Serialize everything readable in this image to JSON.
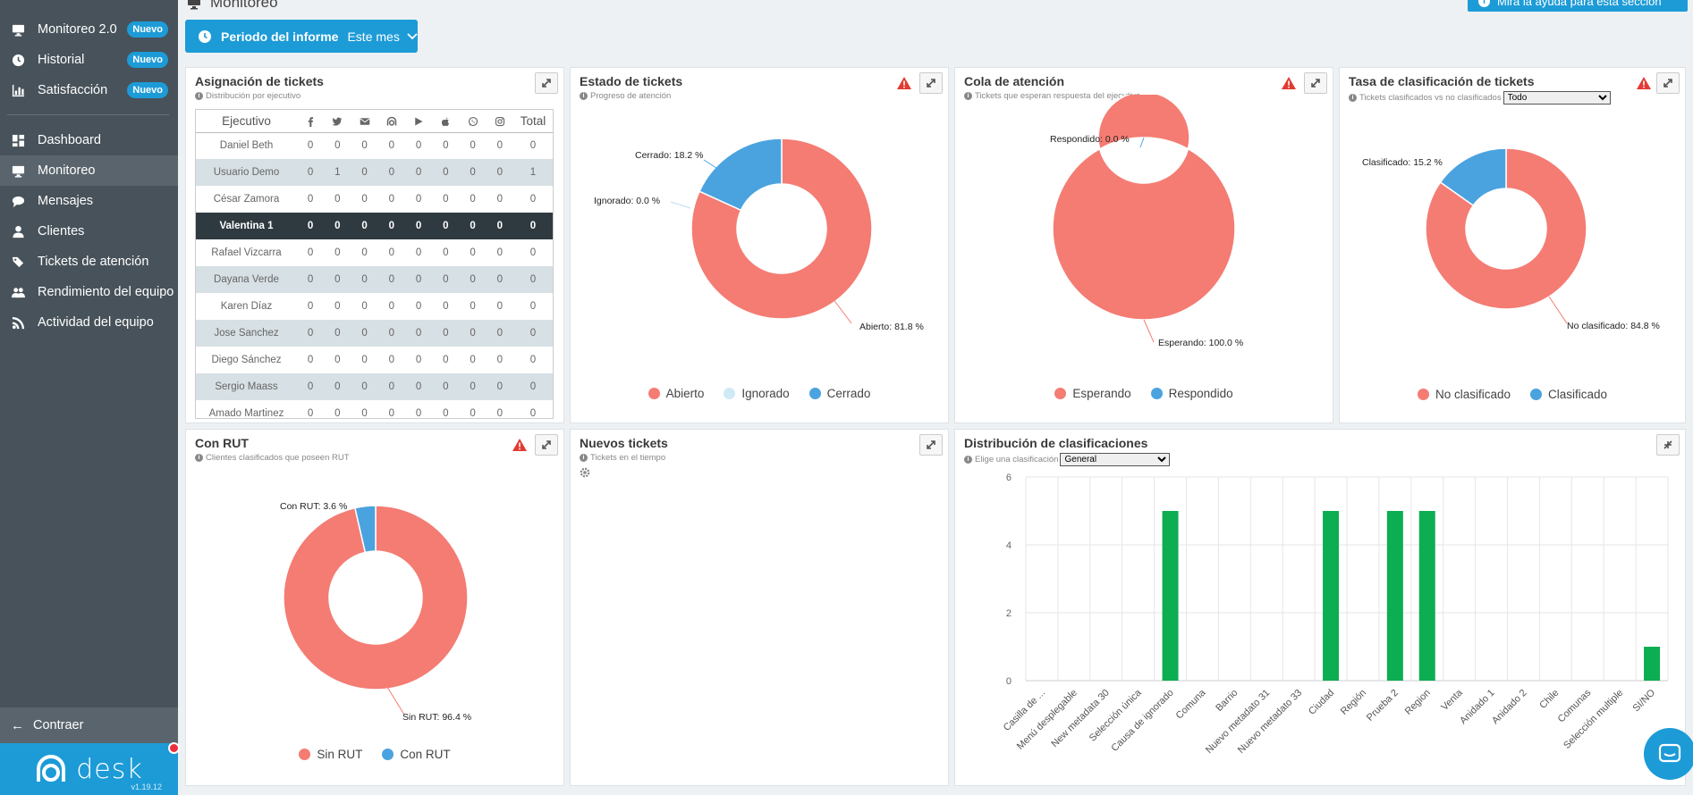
{
  "header": {
    "page_title": "Monitoreo",
    "help_button": "Mira la ayuda para esta sección",
    "period_label": "Periodo del informe",
    "period_value": "Este mes"
  },
  "sidebar": {
    "items": [
      {
        "label": "Monitoreo 2.0",
        "badge": "Nuevo",
        "icon": "monitor-icon"
      },
      {
        "label": "Historial",
        "badge": "Nuevo",
        "icon": "history-icon"
      },
      {
        "label": "Satisfacción",
        "badge": "Nuevo",
        "icon": "bar-chart-icon"
      },
      {
        "label": "Dashboard",
        "icon": "dashboard-icon"
      },
      {
        "label": "Monitoreo",
        "icon": "monitor-icon",
        "active": true
      },
      {
        "label": "Mensajes",
        "icon": "chat-icon"
      },
      {
        "label": "Clientes",
        "icon": "user-icon"
      },
      {
        "label": "Tickets de atención",
        "icon": "tags-icon"
      },
      {
        "label": "Rendimiento del equipo",
        "icon": "users-icon"
      },
      {
        "label": "Actividad del equipo",
        "icon": "rss-icon"
      }
    ],
    "collapse_label": "Contraer",
    "brand_name": "desk",
    "version": "v1.19.12"
  },
  "tickets_assignment": {
    "title": "Asignación de tickets",
    "subtitle": "Distribución por ejecutivo",
    "columns": [
      "Ejecutivo",
      "facebook-icon",
      "twitter-icon",
      "email-icon",
      "desk-icon",
      "play-icon",
      "apple-icon",
      "whatsapp-icon",
      "instagram-icon",
      "Total"
    ],
    "rows": [
      [
        "Daniel Beth",
        "0",
        "0",
        "0",
        "0",
        "0",
        "0",
        "0",
        "0",
        "0"
      ],
      [
        "Usuario Demo",
        "0",
        "1",
        "0",
        "0",
        "0",
        "0",
        "0",
        "0",
        "1"
      ],
      [
        "César Zamora",
        "0",
        "0",
        "0",
        "0",
        "0",
        "0",
        "0",
        "0",
        "0"
      ],
      [
        "Valentina 1",
        "0",
        "0",
        "0",
        "0",
        "0",
        "0",
        "0",
        "0",
        "0"
      ],
      [
        "Rafael Vizcarra",
        "0",
        "0",
        "0",
        "0",
        "0",
        "0",
        "0",
        "0",
        "0"
      ],
      [
        "Dayana Verde",
        "0",
        "0",
        "0",
        "0",
        "0",
        "0",
        "0",
        "0",
        "0"
      ],
      [
        "Karen Díaz",
        "0",
        "0",
        "0",
        "0",
        "0",
        "0",
        "0",
        "0",
        "0"
      ],
      [
        "Jose Sanchez",
        "0",
        "0",
        "0",
        "0",
        "0",
        "0",
        "0",
        "0",
        "0"
      ],
      [
        "Diego Sánchez",
        "0",
        "0",
        "0",
        "0",
        "0",
        "0",
        "0",
        "0",
        "0"
      ],
      [
        "Sergio Maass",
        "0",
        "0",
        "0",
        "0",
        "0",
        "0",
        "0",
        "0",
        "0"
      ],
      [
        "Amado Martinez",
        "0",
        "0",
        "0",
        "0",
        "0",
        "0",
        "0",
        "0",
        "0"
      ]
    ],
    "selected_row": 3
  },
  "ticket_status": {
    "title": "Estado de tickets",
    "subtitle": "Progreso de atención",
    "labels": [
      "Cerrado: 18.2 %",
      "Ignorado: 0.0 %",
      "Abierto: 81.8 %"
    ],
    "legend": [
      "Abierto",
      "Ignorado",
      "Cerrado"
    ]
  },
  "queue": {
    "title": "Cola de atención",
    "subtitle": "Tickets que esperan respuesta del ejecutivo",
    "labels": [
      "Respondido: 0.0 %",
      "Esperando: 100.0 %"
    ],
    "legend": [
      "Esperando",
      "Respondido"
    ]
  },
  "classification_rate": {
    "title": "Tasa de clasificación de tickets",
    "subtitle": "Tickets clasificados vs no clasificados",
    "filter_value": "Todo",
    "labels": [
      "Clasificado: 15.2 %",
      "No clasificado: 84.8 %"
    ],
    "legend": [
      "No clasificado",
      "Clasificado"
    ]
  },
  "rut": {
    "title": "Con RUT",
    "subtitle": "Clientes clasificados que poseen RUT",
    "labels": [
      "Con RUT: 3.6 %",
      "Sin RUT: 96.4 %"
    ],
    "legend": [
      "Sin RUT",
      "Con RUT"
    ]
  },
  "new_tickets": {
    "title": "Nuevos tickets",
    "subtitle": "Tickets en el tiempo"
  },
  "classification_dist": {
    "title": "Distribución de clasificaciones",
    "subtitle": "Elige una clasificación",
    "filter_value": "General"
  },
  "colors": {
    "accent": "#1d9bd7",
    "red": "#f47c73",
    "blue": "#4aa3df",
    "lightblue": "#cfe9f7",
    "green": "#0dad52"
  },
  "chart_data": [
    {
      "type": "pie",
      "title": "Estado de tickets",
      "categories": [
        "Abierto",
        "Ignorado",
        "Cerrado"
      ],
      "values": [
        81.8,
        0.0,
        18.2
      ],
      "colors": [
        "#f47c73",
        "#cfe9f7",
        "#4aa3df"
      ]
    },
    {
      "type": "pie",
      "title": "Cola de atención",
      "categories": [
        "Esperando",
        "Respondido"
      ],
      "values": [
        100.0,
        0.0
      ],
      "colors": [
        "#f47c73",
        "#4aa3df"
      ]
    },
    {
      "type": "pie",
      "title": "Tasa de clasificación de tickets",
      "categories": [
        "No clasificado",
        "Clasificado"
      ],
      "values": [
        84.8,
        15.2
      ],
      "colors": [
        "#f47c73",
        "#4aa3df"
      ]
    },
    {
      "type": "pie",
      "title": "Con RUT",
      "categories": [
        "Sin RUT",
        "Con RUT"
      ],
      "values": [
        96.4,
        3.6
      ],
      "colors": [
        "#f47c73",
        "#4aa3df"
      ]
    },
    {
      "type": "bar",
      "title": "Distribución de clasificaciones",
      "categories": [
        "Casilla de ...",
        "Menú desplegable",
        "New metadata 30",
        "Selección única",
        "Causa de ignorado",
        "Comuna",
        "Barrio",
        "Nuevo metadato 31",
        "Nuevo metadato 33",
        "Ciudad",
        "Región",
        "Prueba 2",
        "Region",
        "Venta",
        "Anidado 1",
        "Anidado 2",
        "Chile",
        "Comunas",
        "Selección multiple",
        "SI/NO"
      ],
      "values": [
        0,
        0,
        0,
        0,
        5,
        0,
        0,
        0,
        0,
        5,
        0,
        5,
        5,
        0,
        0,
        0,
        0,
        0,
        0,
        1
      ],
      "ylim": [
        0,
        6
      ],
      "yticks": [
        0,
        2,
        4,
        6
      ],
      "grid": true,
      "color": "#0dad52"
    }
  ]
}
